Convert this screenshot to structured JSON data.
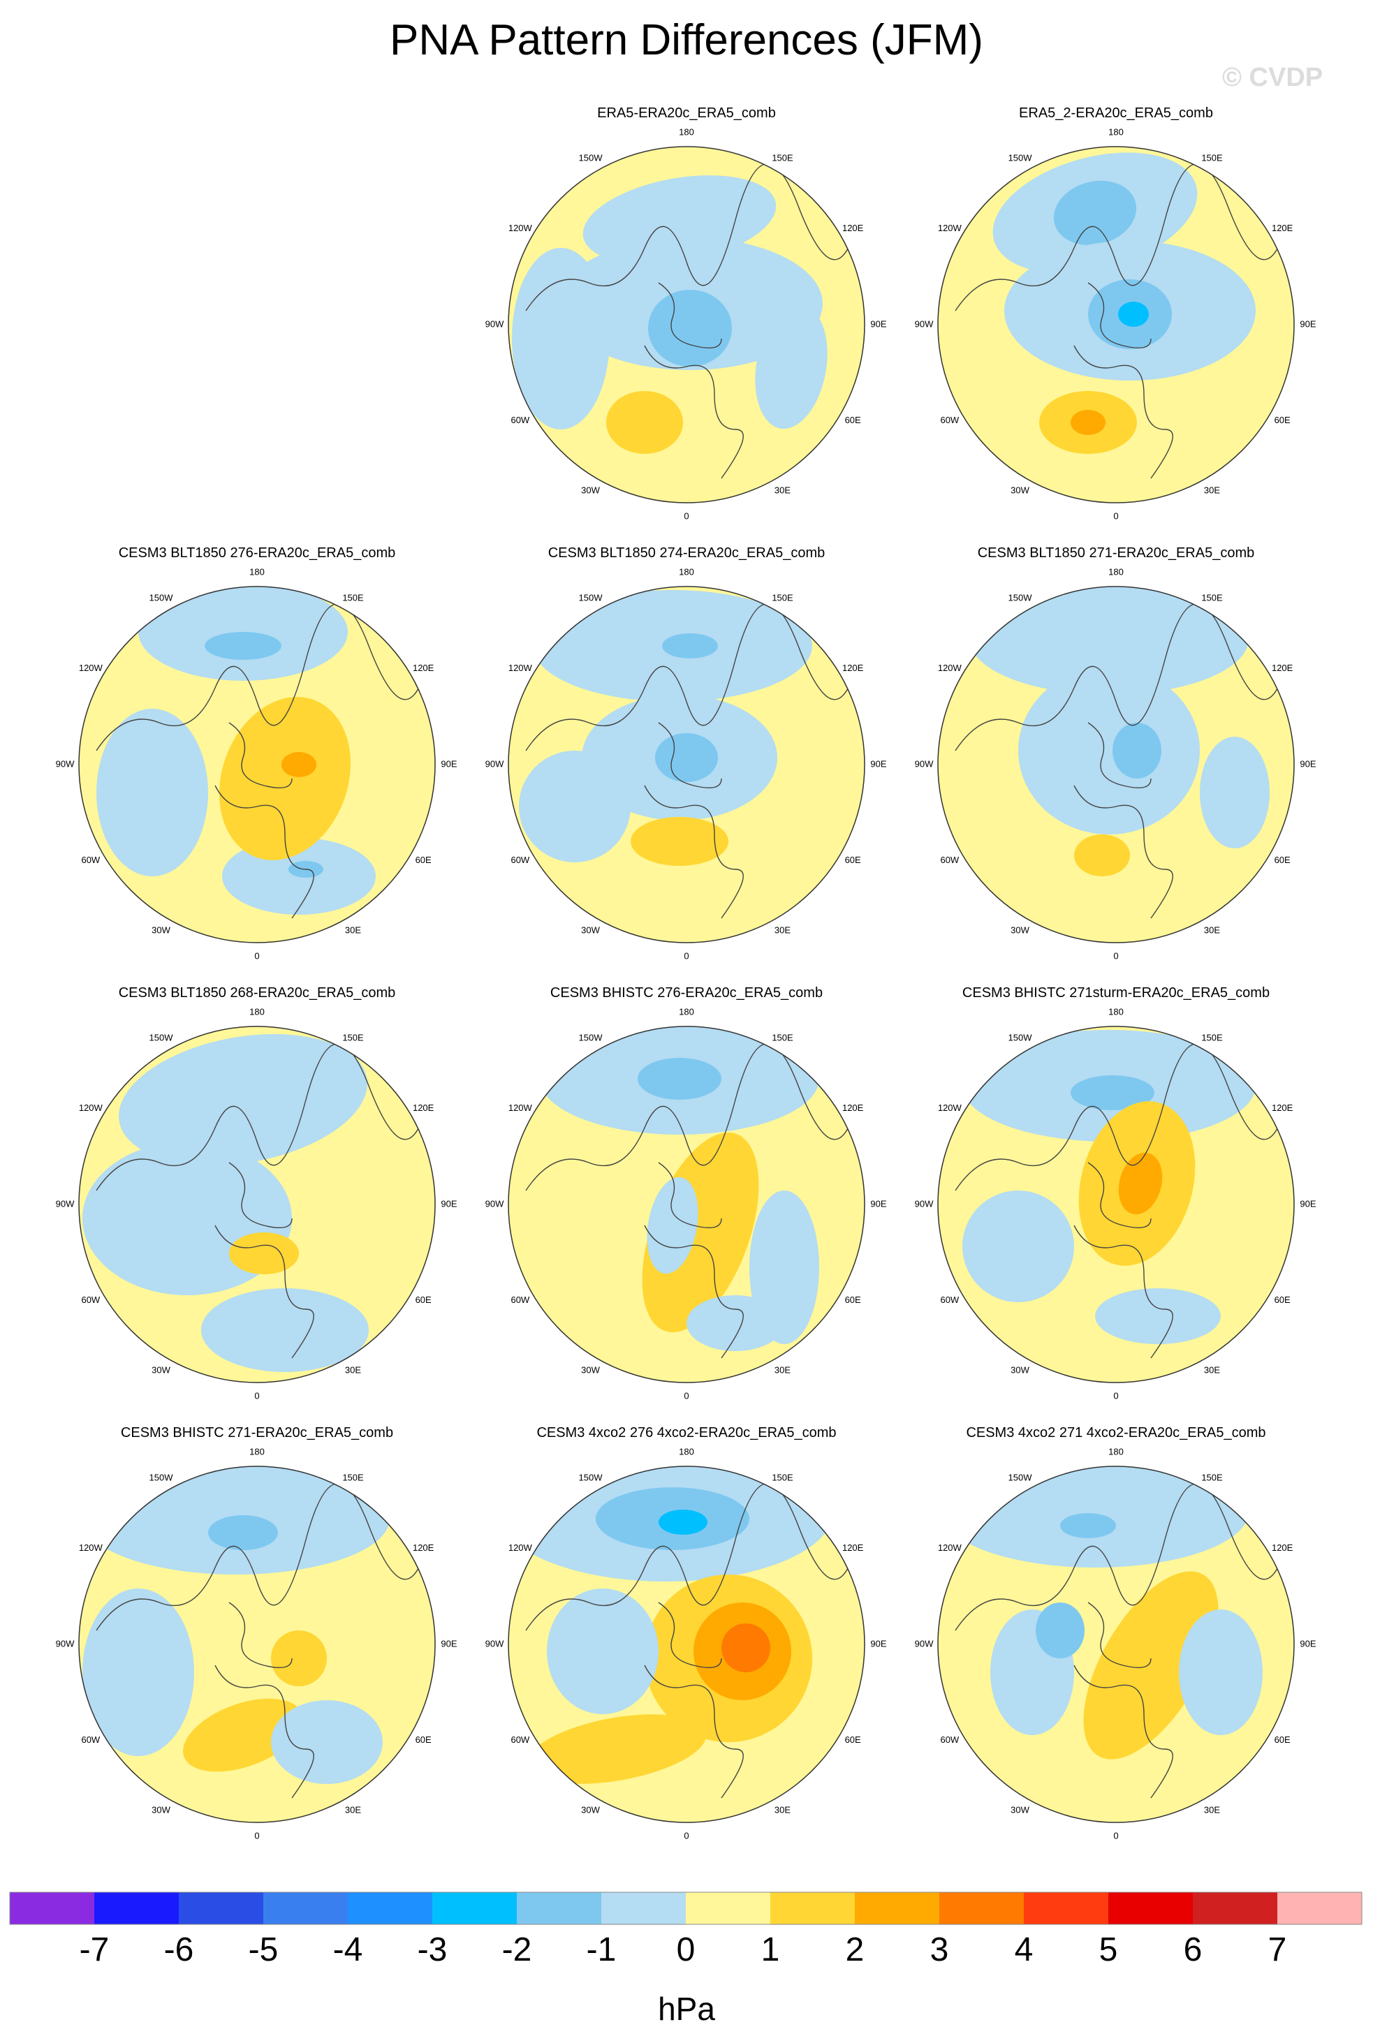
{
  "page_title": "PNA Pattern Differences (JFM)",
  "watermark": "© CVDP",
  "longitude_labels": [
    "180",
    "150E",
    "120E",
    "90E",
    "60E",
    "30E",
    "0",
    "30W",
    "60W",
    "90W",
    "120W",
    "150W"
  ],
  "panels": [
    {
      "title": "ERA5-ERA20c_ERA5_comb",
      "row": 0,
      "col": 1
    },
    {
      "title": "ERA5_2-ERA20c_ERA5_comb",
      "row": 0,
      "col": 2
    },
    {
      "title": "CESM3 BLT1850 276-ERA20c_ERA5_comb",
      "row": 1,
      "col": 0
    },
    {
      "title": "CESM3 BLT1850 274-ERA20c_ERA5_comb",
      "row": 1,
      "col": 1
    },
    {
      "title": "CESM3 BLT1850 271-ERA20c_ERA5_comb",
      "row": 1,
      "col": 2
    },
    {
      "title": "CESM3 BLT1850 268-ERA20c_ERA5_comb",
      "row": 2,
      "col": 0
    },
    {
      "title": "CESM3 BHISTC 276-ERA20c_ERA5_comb",
      "row": 2,
      "col": 1
    },
    {
      "title": "CESM3 BHISTC 271sturm-ERA20c_ERA5_comb",
      "row": 2,
      "col": 2
    },
    {
      "title": "CESM3 BHISTC 271-ERA20c_ERA5_comb",
      "row": 3,
      "col": 0
    },
    {
      "title": "CESM3 4xco2 276 4xco2-ERA20c_ERA5_comb",
      "row": 3,
      "col": 1
    },
    {
      "title": "CESM3 4xco2 271 4xco2-ERA20c_ERA5_comb",
      "row": 3,
      "col": 2
    }
  ],
  "colorbar": {
    "units": "hPa",
    "ticks": [
      "-7",
      "-6",
      "-5",
      "-4",
      "-3",
      "-2",
      "-1",
      "0",
      "1",
      "2",
      "3",
      "4",
      "5",
      "6",
      "7"
    ],
    "colors": [
      "#8a2be2",
      "#1a1aff",
      "#2a4de6",
      "#3a7ff0",
      "#1e90ff",
      "#00bfff",
      "#7ec8f0",
      "#b4dcf2",
      "#fff799",
      "#ffd633",
      "#ffaa00",
      "#ff7a00",
      "#ff3b10",
      "#e80000",
      "#d02020",
      "#ffb3b3"
    ]
  }
}
